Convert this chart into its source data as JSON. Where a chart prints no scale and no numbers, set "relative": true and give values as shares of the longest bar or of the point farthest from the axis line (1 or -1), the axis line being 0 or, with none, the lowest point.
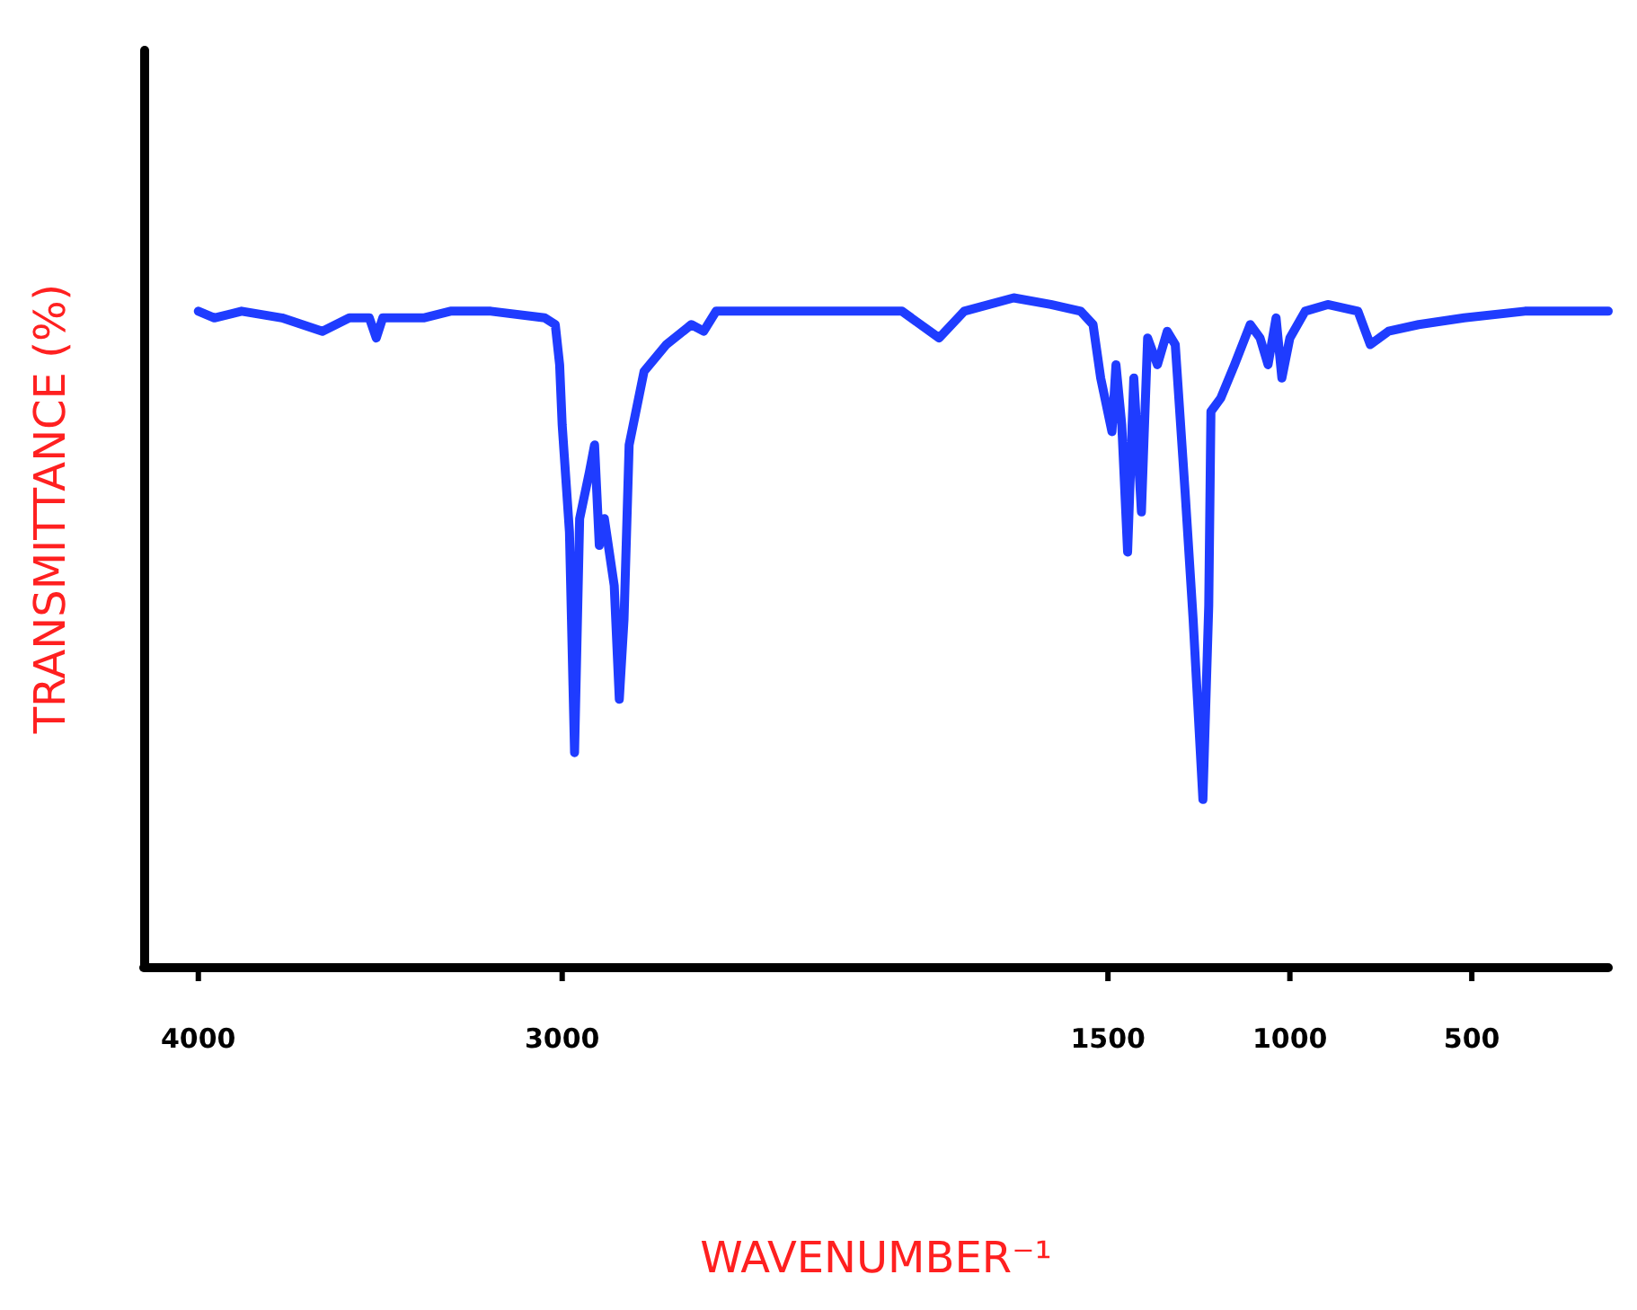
{
  "chart_data": {
    "type": "line",
    "xlabel": "WAVENUMBER⁻¹",
    "ylabel": "TRANSMITTANCE (%)",
    "relative": true,
    "tick_labels": "x",
    "grid": false,
    "marker": "none",
    "line_style": "solid",
    "xlim": [
      4150,
      125
    ],
    "xticks": [
      4000,
      3000,
      1500,
      1000,
      500
    ],
    "series": [
      {
        "color": "#1f3cff",
        "x": [
          4000,
          3956,
          3881,
          3770,
          3659,
          3585,
          3530,
          3511,
          3493,
          3381,
          3307,
          3196,
          3048,
          3019,
          3007,
          3000,
          2980,
          2966,
          2952,
          2925,
          2911,
          2898,
          2884,
          2857,
          2843,
          2830,
          2816,
          2775,
          2714,
          2645,
          2611,
          2577,
          2339,
          2066,
          1964,
          1895,
          1759,
          1657,
          1575,
          1541,
          1520,
          1489,
          1478,
          1462,
          1446,
          1429,
          1408,
          1391,
          1364,
          1337,
          1315,
          1288,
          1266,
          1239,
          1223,
          1217,
          1190,
          1152,
          1109,
          1082,
          1060,
          1038,
          1022,
          1000,
          958,
          896,
          813,
          779,
          729,
          646,
          521,
          354,
          125
        ],
        "values": [
          0.98,
          0.97,
          0.98,
          0.97,
          0.95,
          0.97,
          0.97,
          0.94,
          0.97,
          0.97,
          0.98,
          0.98,
          0.97,
          0.96,
          0.9,
          0.81,
          0.65,
          0.32,
          0.67,
          0.74,
          0.78,
          0.63,
          0.67,
          0.57,
          0.4,
          0.52,
          0.78,
          0.89,
          0.93,
          0.96,
          0.95,
          0.98,
          0.98,
          0.98,
          0.94,
          0.98,
          1.0,
          0.99,
          0.98,
          0.96,
          0.88,
          0.8,
          0.9,
          0.81,
          0.62,
          0.88,
          0.68,
          0.94,
          0.9,
          0.95,
          0.93,
          0.71,
          0.52,
          0.25,
          0.54,
          0.83,
          0.85,
          0.9,
          0.96,
          0.94,
          0.9,
          0.97,
          0.88,
          0.94,
          0.98,
          0.99,
          0.98,
          0.93,
          0.95,
          0.96,
          0.97,
          0.98,
          0.98
        ]
      }
    ]
  }
}
